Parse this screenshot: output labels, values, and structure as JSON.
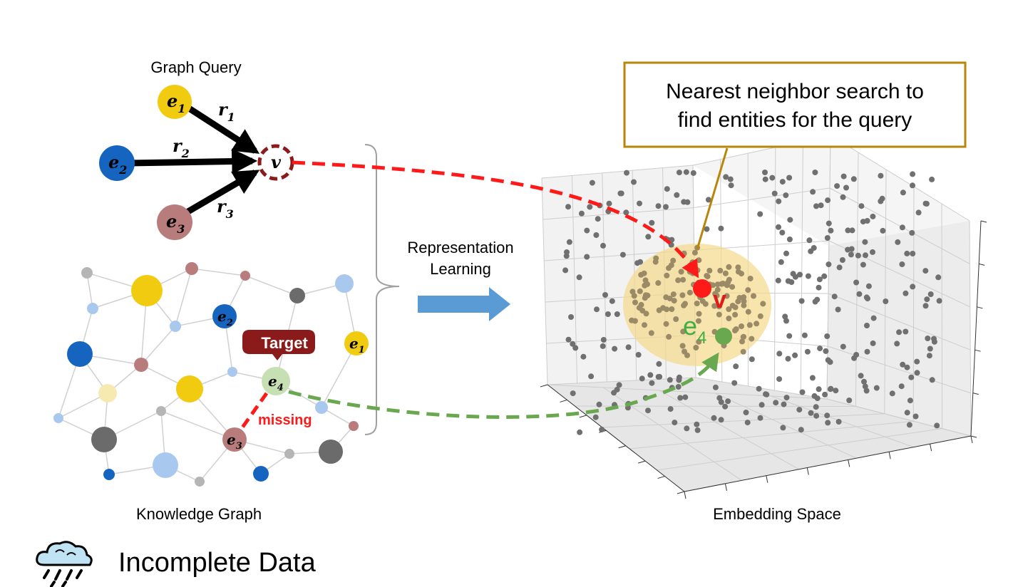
{
  "graph_query": {
    "title": "Graph Query",
    "anchors": [
      {
        "label": "e",
        "sub": "1",
        "color": "#f0cb10"
      },
      {
        "label": "e",
        "sub": "2",
        "color": "#1565c0"
      },
      {
        "label": "e",
        "sub": "3",
        "color": "#b97c7c"
      }
    ],
    "relations": [
      {
        "label": "r",
        "sub": "1"
      },
      {
        "label": "r",
        "sub": "2"
      },
      {
        "label": "r",
        "sub": "3"
      }
    ],
    "variable": "v"
  },
  "knowledge_graph": {
    "title": "Knowledge Graph",
    "target_label": "Target",
    "missing_label": "missing",
    "node_e1": {
      "label": "e",
      "sub": "1"
    },
    "node_e2": {
      "label": "e",
      "sub": "2"
    },
    "node_e3": {
      "label": "e",
      "sub": "3"
    },
    "node_e4": {
      "label": "e",
      "sub": "4"
    }
  },
  "middle": {
    "line1": "Representation",
    "line2": "Learning"
  },
  "embedding": {
    "title": "Embedding Space",
    "callout_line1": "Nearest neighbor search to",
    "callout_line2": "find entities for the query",
    "v_label": "v",
    "e4_label": "e",
    "e4_sub": "4"
  },
  "footer": {
    "label": "Incomplete Data",
    "icon": "rain-cloud-icon"
  },
  "colors": {
    "query_arrow": "#ff1a1a",
    "answer_arrow": "#6aa84f",
    "target_bubble": "#8b1a1a",
    "callout_border": "#b8860b",
    "highlight_region": "#f5d88a",
    "repr_arrow": "#5b9bd5"
  }
}
